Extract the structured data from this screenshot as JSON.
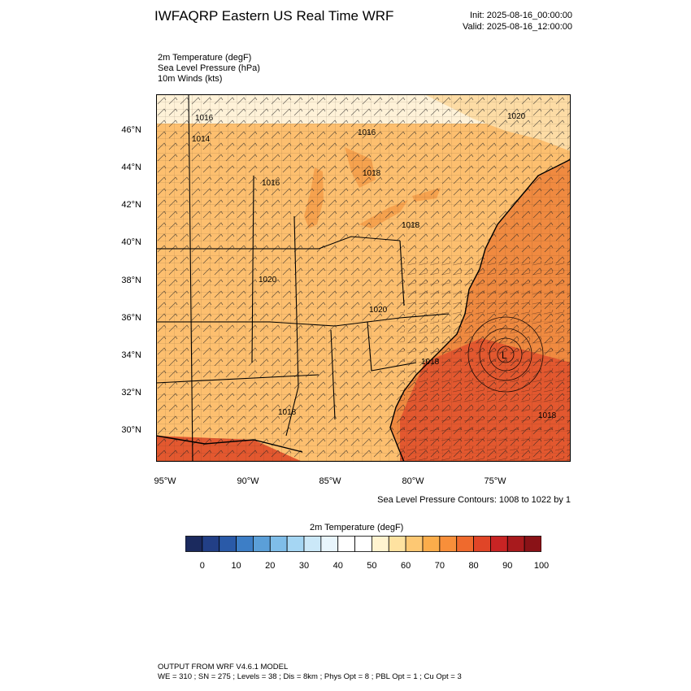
{
  "header": {
    "title": "IWFAQRP Eastern US Real Time WRF",
    "init": "Init: 2025-08-16_00:00:00",
    "valid": "Valid: 2025-08-16_12:00:00"
  },
  "fields": {
    "temp": "2m Temperature   (degF)",
    "slp": "Sea Level Pressure   (hPa)",
    "wind": "10m Winds   (kts)"
  },
  "map": {
    "lat_labels": [
      "46°N",
      "44°N",
      "42°N",
      "40°N",
      "38°N",
      "36°N",
      "34°N",
      "32°N",
      "30°N"
    ],
    "lon_labels": [
      "95°W",
      "90°W",
      "85°W",
      "80°W",
      "75°W"
    ],
    "isobar_labels": [
      "1016",
      "1014",
      "1016",
      "1016",
      "1018",
      "1020",
      "1020",
      "1018",
      "1020",
      "1018",
      "1018",
      "1018"
    ],
    "low_center_label": "L",
    "colors": {
      "land_warm": "#fdbf6f",
      "land_mild": "#fddca5",
      "north_cool": "#fff2d8",
      "ocean": "#f08a40",
      "ocean_hot": "#e3582f",
      "lakes": "#f6a24e"
    }
  },
  "contour_note": "Sea Level Pressure Contours: 1008 to 1022 by 1",
  "colorbar": {
    "title": "2m Temperature  (degF)",
    "colors": [
      "#1b2a5e",
      "#223f86",
      "#2a5aa8",
      "#3d7ec6",
      "#5b9fd8",
      "#7fbde8",
      "#a5d6f3",
      "#cbe8f8",
      "#e8f5fc",
      "#ffffff",
      "#ffffff",
      "#fff3cf",
      "#fee2a0",
      "#fdc873",
      "#fbad4b",
      "#f88f3a",
      "#ef6a2d",
      "#e04527",
      "#c82424",
      "#a81a1d",
      "#8a1217"
    ],
    "ticks": [
      "0",
      "10",
      "20",
      "30",
      "40",
      "50",
      "60",
      "70",
      "80",
      "90",
      "100"
    ]
  },
  "footer": {
    "line1": "OUTPUT FROM WRF V4.6.1 MODEL",
    "line2": "WE = 310 ; SN = 275 ; Levels = 38 ; Dis = 8km ; Phys Opt = 8 ; PBL Opt = 1 ; Cu Opt = 3"
  }
}
